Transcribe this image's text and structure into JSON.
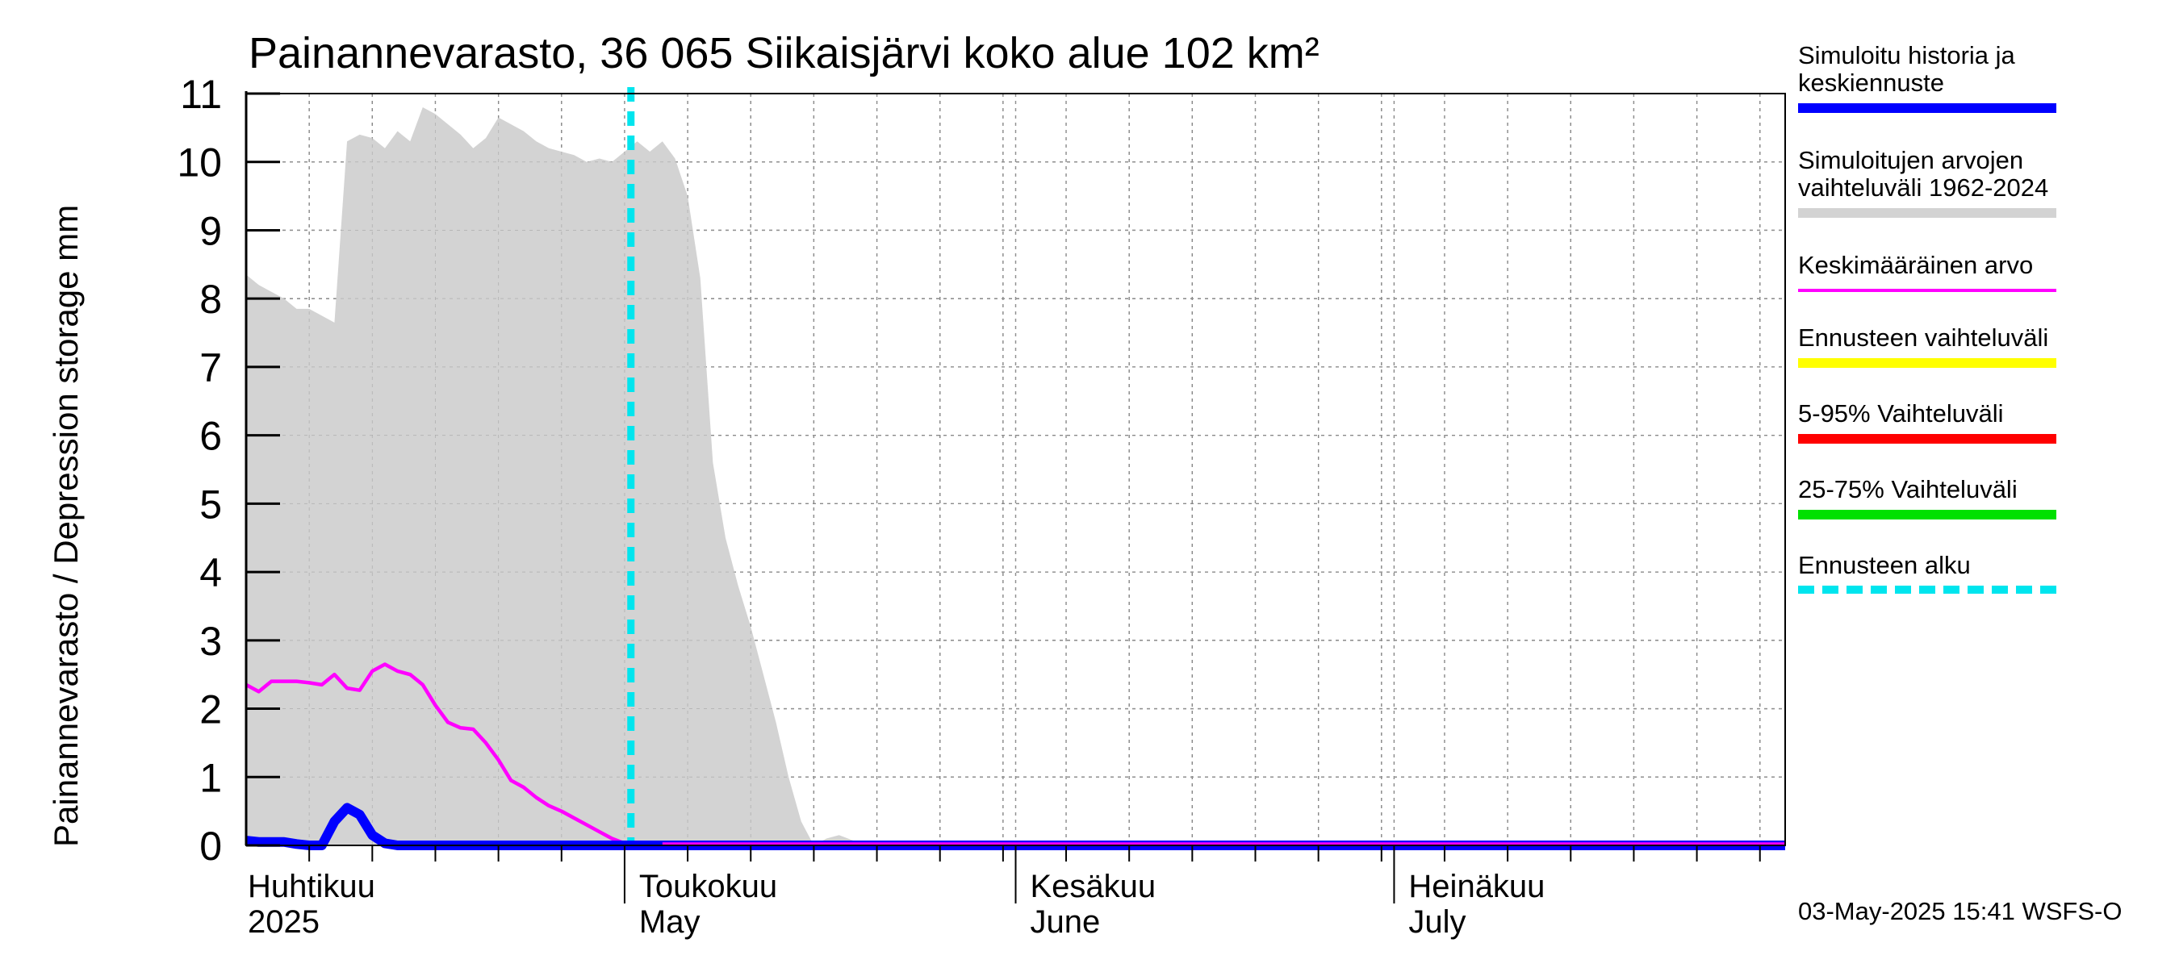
{
  "chart_data": {
    "type": "area",
    "title": "Painannevarasto, 36 065 Siikaisjärvi koko alue 102 km²",
    "ylabel": "Painannevarasto / Depression storage    mm",
    "ylim": [
      0,
      11
    ],
    "yticks": [
      "0",
      "1",
      "2",
      "3",
      "4",
      "5",
      "6",
      "7",
      "8",
      "9",
      "10",
      "11"
    ],
    "xlim_days": [
      0,
      122
    ],
    "grid": true,
    "month_labels": [
      {
        "fi": "Huhtikuu",
        "en": "2025",
        "day": 0
      },
      {
        "fi": "Toukokuu",
        "en": "May",
        "day": 30
      },
      {
        "fi": "Kesäkuu",
        "en": "June",
        "day": 61
      },
      {
        "fi": "Heinäkuu",
        "en": "July",
        "day": 91
      }
    ],
    "forecast_start_day": 30.5,
    "series": [
      {
        "name": "Simuloitujen arvojen vaihteluväli 1962-2024",
        "kind": "band",
        "color": "#d3d3d3",
        "x": [
          -1,
          0,
          1,
          2,
          3,
          4,
          5,
          6,
          7,
          8,
          9,
          10,
          11,
          12,
          13,
          14,
          15,
          16,
          17,
          18,
          19,
          20,
          21,
          22,
          23,
          24,
          25,
          26,
          27,
          28,
          29,
          30,
          31,
          32,
          33,
          34,
          35,
          36,
          37,
          38,
          39,
          40,
          41,
          42,
          43,
          44,
          45,
          46,
          47,
          48,
          49,
          50,
          51,
          122
        ],
        "lower": [
          0,
          0,
          0,
          0,
          0,
          0,
          0,
          0,
          0,
          0,
          0,
          0,
          0,
          0,
          0,
          0,
          0,
          0,
          0,
          0,
          0,
          0,
          0,
          0,
          0,
          0,
          0,
          0,
          0,
          0,
          0,
          0,
          0,
          0,
          0,
          0,
          0,
          0,
          0,
          0,
          0,
          0,
          0,
          0,
          0,
          0,
          0,
          0,
          0,
          0,
          0,
          0,
          0,
          0
        ],
        "upper": [
          8.35,
          8.35,
          8.2,
          8.1,
          8.0,
          7.85,
          7.85,
          7.75,
          7.65,
          10.3,
          10.4,
          10.35,
          10.2,
          10.45,
          10.3,
          10.8,
          10.7,
          10.55,
          10.4,
          10.2,
          10.35,
          10.65,
          10.55,
          10.45,
          10.3,
          10.2,
          10.15,
          10.1,
          10.0,
          10.05,
          10.0,
          10.15,
          10.3,
          10.15,
          10.3,
          10.05,
          9.5,
          8.3,
          5.6,
          4.5,
          3.8,
          3.2,
          2.5,
          1.8,
          1.0,
          0.35,
          0,
          0.1,
          0.15,
          0.08,
          0,
          0,
          0,
          0
        ]
      },
      {
        "name": "Keskimääräinen arvo",
        "kind": "line",
        "color": "#ff00ff",
        "x": [
          0,
          1,
          2,
          3,
          4,
          5,
          6,
          7,
          8,
          9,
          10,
          11,
          12,
          13,
          14,
          15,
          16,
          17,
          18,
          19,
          20,
          21,
          22,
          23,
          24,
          25,
          26,
          27,
          28,
          29,
          30,
          31,
          32,
          33,
          122
        ],
        "values": [
          2.35,
          2.25,
          2.4,
          2.4,
          2.4,
          2.38,
          2.35,
          2.5,
          2.3,
          2.27,
          2.55,
          2.65,
          2.55,
          2.5,
          2.35,
          2.05,
          1.8,
          1.72,
          1.7,
          1.5,
          1.25,
          0.95,
          0.85,
          0.7,
          0.58,
          0.5,
          0.4,
          0.3,
          0.2,
          0.1,
          0.03,
          0.02,
          0.02,
          0.02,
          0.02
        ]
      },
      {
        "name": "Simuloitu historia ja keskiennuste",
        "kind": "line",
        "color": "#0000ff",
        "x": [
          0,
          1,
          2,
          3,
          4,
          5,
          6,
          7,
          8,
          9,
          10,
          11,
          12,
          13,
          14,
          122
        ],
        "values": [
          0.07,
          0.05,
          0.05,
          0.05,
          0.02,
          0.0,
          0.0,
          0.35,
          0.55,
          0.45,
          0.15,
          0.03,
          0.0,
          0.0,
          0.0,
          0.0
        ]
      }
    ]
  },
  "legend": [
    {
      "label": "Simuloitu historia ja\nkeskiennuste",
      "color": "#0000ff",
      "style": "solid"
    },
    {
      "label": "Simuloitujen arvojen\nvaihteluväli 1962-2024",
      "color": "#d3d3d3",
      "style": "solid"
    },
    {
      "label": "Keskimääräinen arvo",
      "color": "#ff00ff",
      "style": "thin"
    },
    {
      "label": "Ennusteen vaihteluväli",
      "color": "#ffff00",
      "style": "solid"
    },
    {
      "label": "5-95% Vaihteluväli",
      "color": "#ff0000",
      "style": "solid"
    },
    {
      "label": "25-75% Vaihteluväli",
      "color": "#00e000",
      "style": "solid"
    },
    {
      "label": "Ennusteen alku",
      "color": "#00e5ee",
      "style": "dashed"
    }
  ],
  "footer": {
    "timestamp": "03-May-2025 15:41 WSFS-O"
  }
}
